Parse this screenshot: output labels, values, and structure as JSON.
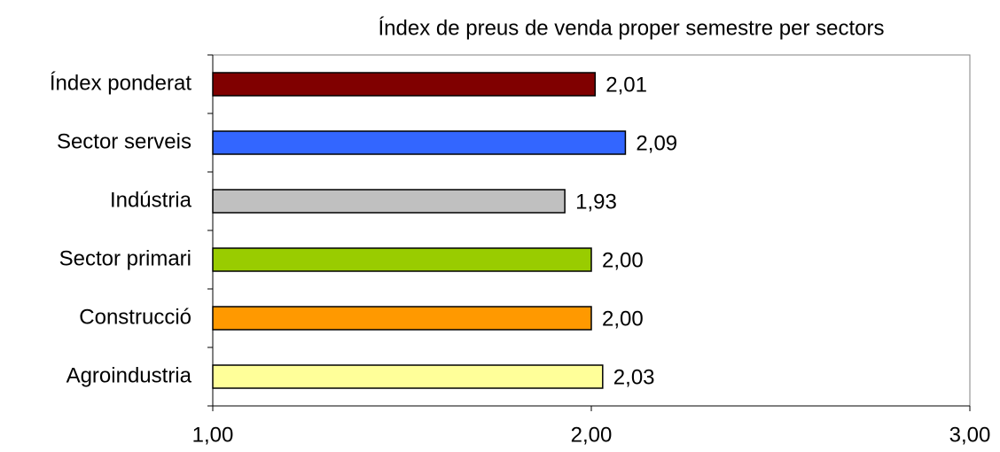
{
  "chart_data": {
    "type": "barh",
    "title": "Índex de preus de venda proper semestre per sectors",
    "categories": [
      "Índex ponderat",
      "Sector serveis",
      "Indústria",
      "Sector primari",
      "Construcció",
      "Agroindustria"
    ],
    "values": [
      2.01,
      2.09,
      1.93,
      2.0,
      2.0,
      2.03
    ],
    "value_labels": [
      "2,01",
      "2,09",
      "1,93",
      "2,00",
      "2,00",
      "2,03"
    ],
    "colors": [
      "#800000",
      "#3366ff",
      "#c0c0c0",
      "#99cc00",
      "#ff9900",
      "#ffff99"
    ],
    "xlim": [
      1,
      3
    ],
    "xticks": [
      {
        "value": 1,
        "label": "1,00"
      },
      {
        "value": 2,
        "label": "2,00"
      },
      {
        "value": 3,
        "label": "3,00"
      }
    ],
    "grid": false
  }
}
